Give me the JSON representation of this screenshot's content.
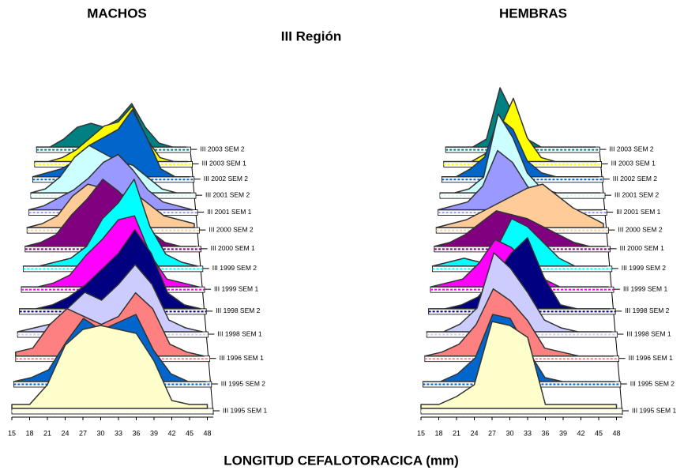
{
  "header": {
    "title": "III Región",
    "x_label": "LONGITUD CEFALOTORACICA (mm)"
  },
  "chart_data": [
    {
      "type": "ridgeline",
      "title": "MACHOS",
      "x": [
        15,
        18,
        21,
        24,
        27,
        30,
        33,
        36,
        39,
        42,
        45,
        48
      ],
      "xlim": [
        15,
        49
      ],
      "xticks": [
        15,
        18,
        21,
        24,
        27,
        30,
        33,
        36,
        39,
        42,
        45,
        48
      ],
      "series": [
        {
          "name": "III 1995 SEM 1",
          "color": "#ffffcc",
          "values": [
            1,
            1,
            6,
            16,
            20,
            21,
            20,
            19,
            12,
            2,
            1,
            1
          ]
        },
        {
          "name": "III 1995 SEM 2",
          "color": "#0066cc",
          "values": [
            0,
            1,
            3,
            10,
            16,
            13,
            15,
            17,
            8,
            2,
            0,
            0
          ]
        },
        {
          "name": "III 1996 SEM 1",
          "color": "#ff8080",
          "values": [
            1,
            2,
            8,
            12,
            10,
            8,
            10,
            16,
            12,
            3,
            1,
            0
          ]
        },
        {
          "name": "III 1998 SEM 1",
          "color": "#ccccff",
          "values": [
            0,
            1,
            2,
            6,
            10,
            8,
            12,
            17,
            12,
            3,
            1,
            0
          ]
        },
        {
          "name": "III 1998 SEM 2",
          "color": "#000080",
          "values": [
            0,
            0,
            1,
            3,
            6,
            10,
            14,
            20,
            14,
            4,
            1,
            0
          ]
        },
        {
          "name": "III 1999 SEM 1",
          "color": "#ff00ff",
          "values": [
            0,
            0,
            1,
            3,
            8,
            12,
            17,
            18,
            8,
            2,
            1,
            0
          ]
        },
        {
          "name": "III 1999 SEM 2",
          "color": "#00ffff",
          "values": [
            0,
            0,
            1,
            2,
            5,
            12,
            16,
            22,
            10,
            3,
            1,
            0
          ]
        },
        {
          "name": "III 2000 SEM 1",
          "color": "#800080",
          "values": [
            0,
            1,
            3,
            8,
            12,
            17,
            14,
            10,
            4,
            1,
            0,
            0
          ]
        },
        {
          "name": "III 2000 SEM 2",
          "color": "#ffcc99",
          "values": [
            0,
            1,
            3,
            8,
            11,
            10,
            8,
            9,
            6,
            3,
            2,
            1
          ]
        },
        {
          "name": "III 2001 SEM 1",
          "color": "#9999ff",
          "values": [
            0,
            1,
            3,
            5,
            8,
            12,
            14,
            10,
            5,
            2,
            1,
            0
          ]
        },
        {
          "name": "III 2001 SEM 2",
          "color": "#ccffff",
          "values": [
            0,
            1,
            4,
            9,
            12,
            10,
            8,
            7,
            4,
            1,
            0,
            0
          ]
        },
        {
          "name": "III 2002 SEM 2",
          "color": "#0066cc",
          "values": [
            0,
            1,
            2,
            4,
            8,
            10,
            12,
            17,
            10,
            2,
            0,
            0
          ]
        },
        {
          "name": "III 2003 SEM 1",
          "color": "#ffff00",
          "values": [
            0,
            0,
            1,
            3,
            6,
            9,
            10,
            14,
            6,
            1,
            0,
            0
          ]
        },
        {
          "name": "III 2003 SEM 2",
          "color": "#008080",
          "values": [
            0,
            0,
            2,
            5,
            6,
            5,
            7,
            11,
            5,
            1,
            0,
            0
          ]
        }
      ]
    },
    {
      "type": "ridgeline",
      "title": "HEMBRAS",
      "x": [
        15,
        18,
        21,
        24,
        27,
        30,
        33,
        36,
        39,
        42,
        45,
        48
      ],
      "xlim": [
        15,
        49
      ],
      "xticks": [
        15,
        18,
        21,
        24,
        27,
        30,
        33,
        36,
        39,
        42,
        45,
        48
      ],
      "series": [
        {
          "name": "III 1995 SEM 1",
          "color": "#ffffcc",
          "values": [
            1,
            1,
            3,
            6,
            22,
            21,
            18,
            1,
            1,
            1,
            1,
            1
          ]
        },
        {
          "name": "III 1995 SEM 2",
          "color": "#0066cc",
          "values": [
            0,
            0,
            2,
            6,
            17,
            16,
            8,
            1,
            0,
            0,
            0,
            0
          ]
        },
        {
          "name": "III 1996 SEM 1",
          "color": "#ff8080",
          "values": [
            0,
            1,
            3,
            8,
            17,
            14,
            9,
            2,
            1,
            0,
            0,
            0
          ]
        },
        {
          "name": "III 1998 SEM 1",
          "color": "#ccccff",
          "values": [
            0,
            0,
            2,
            6,
            20,
            16,
            10,
            3,
            1,
            0,
            0,
            0
          ]
        },
        {
          "name": "III 1998 SEM 2",
          "color": "#000080",
          "values": [
            0,
            0,
            1,
            3,
            8,
            14,
            18,
            8,
            1,
            0,
            0,
            0
          ]
        },
        {
          "name": "III 1999 SEM 1",
          "color": "#ff00ff",
          "values": [
            0,
            1,
            2,
            6,
            12,
            10,
            6,
            2,
            0,
            0,
            0,
            0
          ]
        },
        {
          "name": "III 1999 SEM 2",
          "color": "#00ffff",
          "values": [
            0,
            1,
            2,
            1,
            4,
            12,
            10,
            6,
            2,
            0,
            0,
            0
          ]
        },
        {
          "name": "III 2000 SEM 1",
          "color": "#800080",
          "values": [
            0,
            1,
            3,
            6,
            9,
            8,
            7,
            5,
            3,
            1,
            0,
            0
          ]
        },
        {
          "name": "III 2000 SEM 2",
          "color": "#ffcc99",
          "values": [
            0,
            1,
            2,
            4,
            6,
            8,
            10,
            11,
            8,
            5,
            3,
            1
          ]
        },
        {
          "name": "III 2001 SEM 1",
          "color": "#9999ff",
          "values": [
            0,
            1,
            2,
            6,
            15,
            12,
            6,
            2,
            1,
            0,
            0,
            0
          ]
        },
        {
          "name": "III 2001 SEM 2",
          "color": "#ccffff",
          "values": [
            0,
            0,
            1,
            4,
            20,
            14,
            5,
            1,
            0,
            0,
            0,
            0
          ]
        },
        {
          "name": "III 2002 SEM 2",
          "color": "#0066cc",
          "values": [
            0,
            0,
            2,
            5,
            15,
            12,
            4,
            1,
            0,
            0,
            0,
            0
          ]
        },
        {
          "name": "III 2003 SEM 1",
          "color": "#ffff00",
          "values": [
            0,
            0,
            0,
            2,
            8,
            16,
            6,
            1,
            0,
            0,
            0,
            0
          ]
        },
        {
          "name": "III 2003 SEM 2",
          "color": "#008080",
          "values": [
            0,
            0,
            0,
            2,
            15,
            8,
            2,
            0,
            0,
            0,
            0,
            0
          ]
        }
      ]
    }
  ]
}
